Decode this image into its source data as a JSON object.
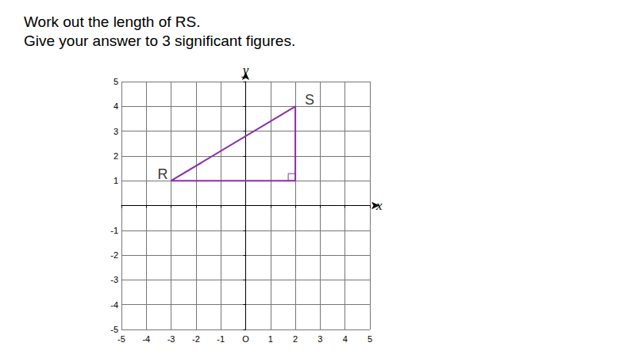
{
  "question": [
    "Work out the length of RS.",
    "Give your answer to 3 significant figures."
  ],
  "chart_data": {
    "type": "line",
    "x": [
      -3,
      2,
      2,
      -3
    ],
    "values": [
      1,
      4,
      1,
      1
    ],
    "color": "#8b2fa8",
    "annotations": [
      {
        "text": "R",
        "x": -3,
        "y": 1
      },
      {
        "text": "S",
        "x": 2,
        "y": 4
      }
    ],
    "right_angle": [
      2,
      1
    ],
    "x_label": "x",
    "y_label": "y",
    "xlim": [
      -5,
      5
    ],
    "ylim": [
      -5,
      5
    ],
    "xticks": [
      -5,
      -4,
      -3,
      -2,
      -1,
      {
        "value": 0,
        "label": "O"
      },
      1,
      2,
      3,
      4,
      5
    ],
    "yticks": [
      -5,
      -4,
      -3,
      -2,
      -1,
      1,
      2,
      3,
      4,
      5
    ],
    "grid": true
  }
}
